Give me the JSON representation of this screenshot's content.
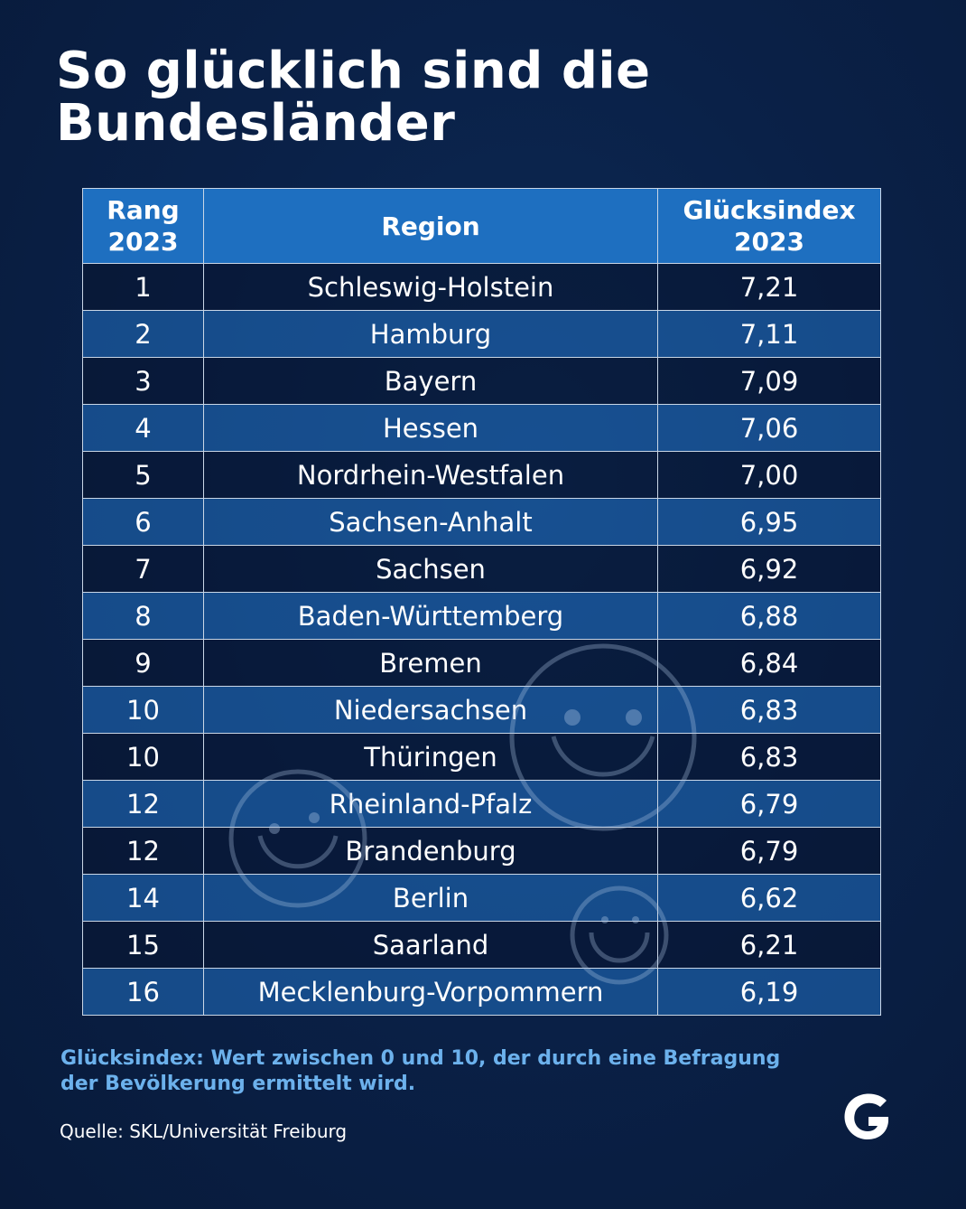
{
  "title_lines": [
    "So glücklich sind die",
    "Bundesländer"
  ],
  "table": {
    "headers": {
      "rank": [
        "Rang",
        "2023"
      ],
      "region": "Region",
      "index": [
        "Glücksindex",
        "2023"
      ]
    },
    "rows": [
      {
        "rank": "1",
        "region": "Schleswig-Holstein",
        "index": "7,21"
      },
      {
        "rank": "2",
        "region": "Hamburg",
        "index": "7,11"
      },
      {
        "rank": "3",
        "region": "Bayern",
        "index": "7,09"
      },
      {
        "rank": "4",
        "region": "Hessen",
        "index": "7,06"
      },
      {
        "rank": "5",
        "region": "Nordrhein-Westfalen",
        "index": "7,00"
      },
      {
        "rank": "6",
        "region": "Sachsen-Anhalt",
        "index": "6,95"
      },
      {
        "rank": "7",
        "region": "Sachsen",
        "index": "6,92"
      },
      {
        "rank": "8",
        "region": "Baden-Württemberg",
        "index": "6,88"
      },
      {
        "rank": "9",
        "region": "Bremen",
        "index": "6,84"
      },
      {
        "rank": "10",
        "region": "Niedersachsen",
        "index": "6,83"
      },
      {
        "rank": "10",
        "region": "Thüringen",
        "index": "6,83"
      },
      {
        "rank": "12",
        "region": "Rheinland-Pfalz",
        "index": "6,79"
      },
      {
        "rank": "12",
        "region": "Brandenburg",
        "index": "6,79"
      },
      {
        "rank": "14",
        "region": "Berlin",
        "index": "6,62"
      },
      {
        "rank": "15",
        "region": "Saarland",
        "index": "6,21"
      },
      {
        "rank": "16",
        "region": "Mecklenburg-Vorpommern",
        "index": "6,19"
      }
    ]
  },
  "footnote": "Glücksindex: Wert zwischen 0 und 10, der durch eine Befragung der Bevölkerung ermittelt wird.",
  "source": "Quelle: SKL/Universität Freiburg",
  "colors": {
    "background": "#0a2148",
    "header": "#1e6fc0",
    "row_blue": "#1f67b4",
    "footnote": "#6cb1ec"
  },
  "decorations": [
    "smiley-icon",
    "smiley-icon",
    "smiley-icon"
  ],
  "logo": "G",
  "chart_data": {
    "type": "table",
    "title": "So glücklich sind die Bundesländer",
    "columns": [
      "Rang 2023",
      "Region",
      "Glücksindex 2023"
    ],
    "categories": [
      "Schleswig-Holstein",
      "Hamburg",
      "Bayern",
      "Hessen",
      "Nordrhein-Westfalen",
      "Sachsen-Anhalt",
      "Sachsen",
      "Baden-Württemberg",
      "Bremen",
      "Niedersachsen",
      "Thüringen",
      "Rheinland-Pfalz",
      "Brandenburg",
      "Berlin",
      "Saarland",
      "Mecklenburg-Vorpommern"
    ],
    "ranks": [
      1,
      2,
      3,
      4,
      5,
      6,
      7,
      8,
      9,
      10,
      10,
      12,
      12,
      14,
      15,
      16
    ],
    "values": [
      7.21,
      7.11,
      7.09,
      7.06,
      7.0,
      6.95,
      6.92,
      6.88,
      6.84,
      6.83,
      6.83,
      6.79,
      6.79,
      6.62,
      6.21,
      6.19
    ]
  }
}
